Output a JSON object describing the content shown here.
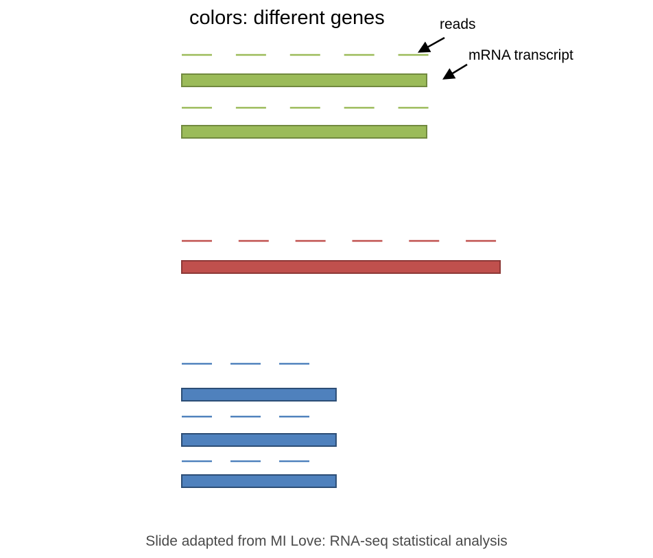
{
  "title": "colors: different genes",
  "labels": {
    "reads": "reads",
    "transcript": "mRNA transcript"
  },
  "caption": "Slide adapted from MI Love: RNA-seq statistical analysis",
  "colors": {
    "green_fill": "#9BBB59",
    "green_stroke": "#71893F",
    "green_read": "#9BBB59",
    "red_fill": "#C0504D",
    "red_stroke": "#8C3836",
    "red_read": "#C0504D",
    "blue_fill": "#4F81BD",
    "blue_stroke": "#2C4D75",
    "blue_read": "#4F81BD",
    "arrow": "#000000"
  },
  "genes": [
    {
      "name": "green-gene",
      "color": "green",
      "transcripts": 2,
      "reads_per_transcript": 5,
      "relative_length": 1.0
    },
    {
      "name": "red-gene",
      "color": "red",
      "transcripts": 1,
      "reads_per_transcript": 6,
      "relative_length": 1.3
    },
    {
      "name": "blue-gene",
      "color": "blue",
      "transcripts": 3,
      "reads_per_transcript": 3,
      "relative_length": 0.63
    }
  ]
}
